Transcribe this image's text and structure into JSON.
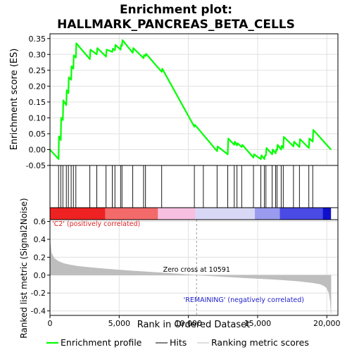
{
  "chart_data": {
    "type": "line",
    "title_line1": "Enrichment plot:",
    "title_line2": "HALLMARK_PANCREAS_BETA_CELLS",
    "top_panel": {
      "ylabel": "Enrichment score (ES)",
      "ylim": [
        -0.05,
        0.365
      ],
      "yticks": [
        -0.05,
        0.0,
        0.05,
        0.1,
        0.15,
        0.2,
        0.25,
        0.3,
        0.35
      ],
      "ytick_labels": [
        "-0.05",
        "0.00",
        "0.05",
        "0.10",
        "0.15",
        "0.20",
        "0.25",
        "0.30",
        "0.35"
      ],
      "grid": true,
      "series": [
        {
          "name": "Enrichment profile",
          "color": "#00ff00",
          "x": [
            0,
            620,
            650,
            780,
            810,
            930,
            960,
            1180,
            1210,
            1330,
            1360,
            1530,
            1560,
            1690,
            1720,
            1870,
            1900,
            2880,
            2920,
            3380,
            3420,
            4050,
            4090,
            4500,
            4540,
            4690,
            4730,
            5100,
            5140,
            5200,
            5240,
            5980,
            6020,
            6760,
            6800,
            6900,
            6940,
            8070,
            8110,
            10430,
            10470,
            12070,
            12110,
            12840,
            12880,
            13310,
            13350,
            13510,
            13550,
            13850,
            13890,
            14700,
            14740,
            15230,
            15270,
            15490,
            15530,
            15600,
            15640,
            16050,
            16090,
            16300,
            16340,
            16400,
            16440,
            16700,
            16740,
            16850,
            16890,
            17590,
            17630,
            18020,
            18060,
            18700,
            18740,
            18980,
            19020,
            20300
          ],
          "y": [
            0.0,
            -0.03,
            0.042,
            0.03,
            0.1,
            0.093,
            0.155,
            0.14,
            0.187,
            0.178,
            0.228,
            0.22,
            0.263,
            0.255,
            0.297,
            0.29,
            0.335,
            0.285,
            0.315,
            0.3,
            0.32,
            0.293,
            0.315,
            0.308,
            0.318,
            0.313,
            0.33,
            0.315,
            0.33,
            0.327,
            0.345,
            0.305,
            0.32,
            0.288,
            0.298,
            0.295,
            0.302,
            0.245,
            0.255,
            0.072,
            0.078,
            -0.005,
            0.01,
            -0.015,
            0.035,
            0.015,
            0.025,
            0.013,
            0.02,
            0.008,
            0.015,
            -0.025,
            -0.015,
            -0.03,
            -0.018,
            -0.03,
            -0.02,
            -0.018,
            0.005,
            -0.015,
            0.0,
            -0.012,
            0.0,
            -0.003,
            0.015,
            0.0,
            0.012,
            0.005,
            0.04,
            0.01,
            0.025,
            0.008,
            0.033,
            0.005,
            0.035,
            0.025,
            0.062,
            0.0
          ]
        }
      ]
    },
    "hits_panel": {
      "hit_positions": [
        620,
        780,
        930,
        1180,
        1330,
        1530,
        1690,
        1870,
        2880,
        3380,
        4050,
        4500,
        4690,
        5100,
        5200,
        5980,
        6760,
        6900,
        8070,
        10430,
        11080,
        12070,
        12840,
        13310,
        13510,
        13850,
        14700,
        15230,
        15490,
        15600,
        16050,
        16300,
        16400,
        16700,
        16850,
        17590,
        18020,
        18700,
        18980
      ]
    },
    "ranking_bar": {
      "segments": [
        {
          "from": 0,
          "to": 4000,
          "color": "#ee2222"
        },
        {
          "from": 4000,
          "to": 7800,
          "color": "#f36a6a"
        },
        {
          "from": 7800,
          "to": 10500,
          "color": "#f8c0e0"
        },
        {
          "from": 10500,
          "to": 14800,
          "color": "#d8d8f6"
        },
        {
          "from": 14800,
          "to": 16600,
          "color": "#9a9aee"
        },
        {
          "from": 16600,
          "to": 19700,
          "color": "#4a4ae4"
        },
        {
          "from": 19700,
          "to": 20300,
          "color": "#1010cc"
        }
      ]
    },
    "bottom_panel": {
      "ylabel": "Ranked list metric (Signal2Noise)",
      "xlabel": "Rank in Ordered Dataset",
      "ylim": [
        -0.45,
        0.62
      ],
      "yticks": [
        -0.4,
        -0.2,
        0.0,
        0.2,
        0.4,
        0.6
      ],
      "ytick_labels": [
        "-0.4",
        "-0.2",
        "0.0",
        "0.2",
        "0.4",
        "0.6"
      ],
      "xlim": [
        0,
        20800
      ],
      "xticks": [
        0,
        5000,
        10000,
        15000,
        20000
      ],
      "xtick_labels": [
        "0",
        "5,000",
        "10,000",
        "15,000",
        "20,000"
      ],
      "metric_x": [
        0,
        100,
        300,
        600,
        1000,
        1500,
        2000,
        3000,
        4000,
        5000,
        6000,
        7000,
        8000,
        9000,
        10000,
        10591,
        12000,
        14000,
        15000,
        16000,
        17000,
        18000,
        19000,
        19500,
        19800,
        20000,
        20150,
        20250,
        20300
      ],
      "metric_y": [
        0.38,
        0.25,
        0.19,
        0.155,
        0.13,
        0.113,
        0.1,
        0.084,
        0.07,
        0.058,
        0.047,
        0.037,
        0.027,
        0.017,
        0.006,
        0.0,
        -0.012,
        -0.03,
        -0.038,
        -0.046,
        -0.056,
        -0.068,
        -0.086,
        -0.1,
        -0.12,
        -0.145,
        -0.2,
        -0.3,
        -0.43
      ],
      "zero_cross_label": "Zero cross at 10591",
      "zero_cross_x": 10591,
      "pos_label": "'C2' (positively correlated)",
      "neg_label": "'REMAINING' (negatively correlated)"
    },
    "legend": [
      {
        "label": "Enrichment profile",
        "color": "#00ff00"
      },
      {
        "label": "Hits",
        "color": "#000000"
      },
      {
        "label": "Ranking metric scores",
        "color": "#bebebe"
      }
    ],
    "colors": {
      "profile": "#00ff00",
      "metric_fill": "#bebebe",
      "pos_label": "#dd2222",
      "neg_label": "#2222cc",
      "grid": "#e0e0e0"
    }
  }
}
